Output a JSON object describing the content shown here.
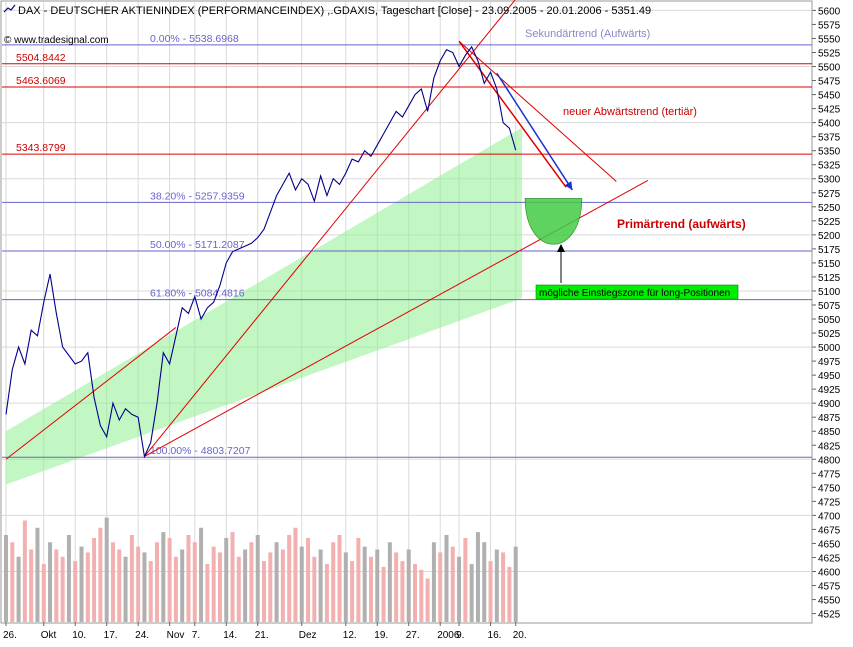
{
  "chart_data": {
    "type": "line",
    "title": "DAX  - DEUTSCHER AKTIENINDEX (PERFORMANCEINDEX) ,.GDAXIS, Tageschart [Close] - 23.09.2005 - 20.01.2006 - 5351.49",
    "watermark": "© www.tradesignal.com",
    "icon": "chart-line-icon",
    "ylim": [
      4510,
      5615
    ],
    "xlim": [
      0,
      82
    ],
    "y_ticks": [
      4525,
      4550,
      4575,
      4600,
      4625,
      4650,
      4675,
      4700,
      4725,
      4750,
      4775,
      4800,
      4825,
      4850,
      4875,
      4900,
      4925,
      4950,
      4975,
      5000,
      5025,
      5050,
      5075,
      5100,
      5125,
      5150,
      5175,
      5200,
      5225,
      5250,
      5275,
      5300,
      5325,
      5350,
      5375,
      5400,
      5425,
      5450,
      5475,
      5500,
      5525,
      5550,
      5575,
      5600
    ],
    "x_ticks": [
      {
        "i": 0,
        "label": "26."
      },
      {
        "i": 6,
        "label": "Okt"
      },
      {
        "i": 11,
        "label": "10."
      },
      {
        "i": 16,
        "label": "17."
      },
      {
        "i": 21,
        "label": "24."
      },
      {
        "i": 26,
        "label": "Nov"
      },
      {
        "i": 30,
        "label": "7."
      },
      {
        "i": 35,
        "label": "14."
      },
      {
        "i": 40,
        "label": "21."
      },
      {
        "i": 47,
        "label": "Dez"
      },
      {
        "i": 54,
        "label": "12."
      },
      {
        "i": 59,
        "label": "19."
      },
      {
        "i": 64,
        "label": "27."
      },
      {
        "i": 69,
        "label": "2006"
      },
      {
        "i": 72,
        "label": "9."
      },
      {
        "i": 77,
        "label": "16."
      },
      {
        "i": 81,
        "label": "20."
      }
    ],
    "series": [
      {
        "name": "DAX",
        "values": [
          4880,
          4960,
          5000,
          4970,
          5030,
          5020,
          5080,
          5130,
          5060,
          5000,
          4985,
          4970,
          4975,
          4990,
          4910,
          4860,
          4840,
          4900,
          4870,
          4890,
          4880,
          4875,
          4805,
          4830,
          4900,
          4990,
          4970,
          5020,
          5070,
          5060,
          5090,
          5050,
          5070,
          5080,
          5110,
          5150,
          5170,
          5175,
          5180,
          5185,
          5195,
          5210,
          5240,
          5270,
          5290,
          5310,
          5280,
          5300,
          5290,
          5260,
          5305,
          5270,
          5300,
          5290,
          5310,
          5335,
          5330,
          5350,
          5340,
          5360,
          5380,
          5400,
          5420,
          5410,
          5430,
          5450,
          5460,
          5420,
          5480,
          5510,
          5530,
          5525,
          5500,
          5520,
          5535,
          5510,
          5470,
          5490,
          5460,
          5400,
          5390,
          5351
        ]
      }
    ],
    "volume": [
      60,
      55,
      45,
      70,
      50,
      65,
      40,
      55,
      50,
      45,
      60,
      42,
      52,
      48,
      58,
      65,
      72,
      55,
      50,
      45,
      60,
      52,
      48,
      42,
      55,
      62,
      58,
      45,
      50,
      60,
      55,
      65,
      40,
      52,
      48,
      58,
      62,
      45,
      50,
      55,
      60,
      42,
      48,
      55,
      50,
      60,
      65,
      52,
      58,
      45,
      50,
      40,
      55,
      60,
      48,
      42,
      58,
      52,
      45,
      50,
      38,
      55,
      48,
      42,
      50,
      40,
      36,
      30,
      55,
      48,
      60,
      52,
      45,
      58,
      40,
      62,
      55,
      42,
      50,
      48,
      38,
      52
    ],
    "volume_gray_indices": [
      0,
      2,
      5,
      7,
      10,
      12,
      16,
      19,
      22,
      25,
      28,
      31,
      35,
      38,
      40,
      43,
      47,
      50,
      54,
      57,
      59,
      61,
      64,
      68,
      70,
      72,
      74,
      75,
      76,
      78,
      81
    ],
    "horizontal_lines": [
      {
        "y": 5504.8442,
        "label": "5504.8442",
        "style": "red"
      },
      {
        "y": 5463.6069,
        "label": "5463.6069",
        "style": "red"
      },
      {
        "y": 5343.8799,
        "label": "5343.8799",
        "style": "red"
      },
      {
        "y": 5538.6968,
        "label": "0.00% - 5538.6968",
        "style": "fib"
      },
      {
        "y": 5257.9359,
        "label": "38.20% - 5257.9359",
        "style": "fib"
      },
      {
        "y": 5171.2087,
        "label": "50.00% - 5171.2087",
        "style": "fib"
      },
      {
        "y": 5084.4816,
        "label": "61.80% - 5084.4816",
        "style": "fib"
      },
      {
        "y": 4803.7207,
        "label": "100.00% - 4803.7207",
        "style": "fib"
      }
    ],
    "annotations": {
      "secondary_trend": "Sekundärtrend (Aufwärts)",
      "new_downtrend": "neuer Abwärtstrend (tertiär)",
      "primary_trend": "Primärtrend (aufwärts)",
      "entry_zone": "mögliche Einstiegszone für long-Positionen"
    },
    "colors": {
      "price": "#00008b",
      "trend": "#e00000",
      "fib": "#6666cc",
      "channel": "#90ee90",
      "zone": "#44cc44",
      "label_box": "#00ee00",
      "vol_pink": "#f3b0b0",
      "vol_gray": "#b0b0b0",
      "grid": "#d9d9d9",
      "axis_text": "#000000"
    }
  }
}
